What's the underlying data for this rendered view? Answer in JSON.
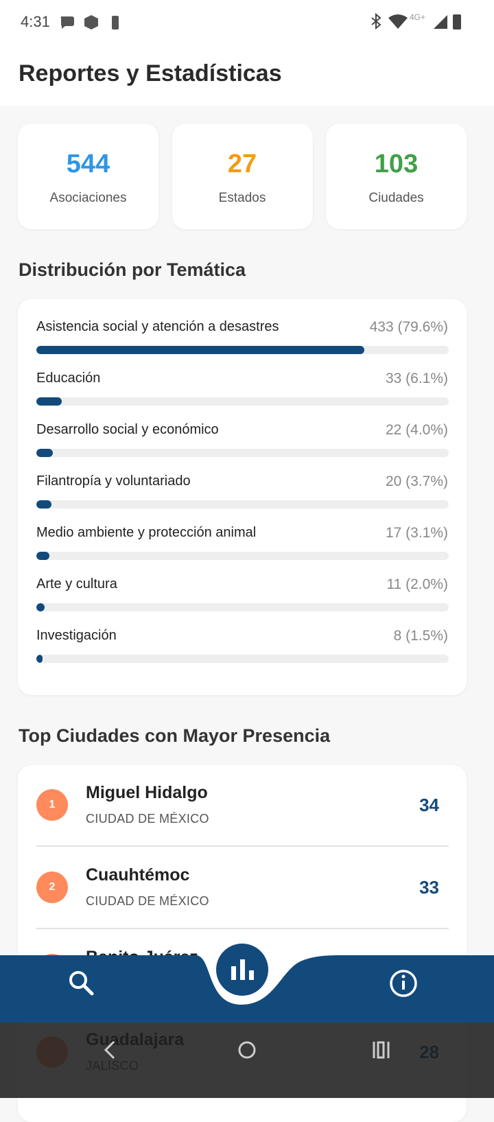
{
  "status_bar": {
    "time": "4:31",
    "network": "4G+"
  },
  "header": {
    "title": "Reportes y Estadísticas"
  },
  "stats": [
    {
      "value": 544,
      "label": "Asociaciones",
      "color": "#2e96e8"
    },
    {
      "value": 27,
      "label": "Estados",
      "color": "#f39c12"
    },
    {
      "value": 103,
      "label": "Ciudades",
      "color": "#43a047"
    }
  ],
  "topics": {
    "title": "Distribución por Temática",
    "items": [
      {
        "name": "Asistencia social y atención a desastres",
        "percent": 79.6,
        "label": "433 (79.6%)"
      },
      {
        "name": "Educación",
        "percent": 6.1,
        "label": "33 (6.1%)"
      },
      {
        "name": "Desarrollo social y económico",
        "percent": 4.0,
        "label": "22 (4.0%)"
      },
      {
        "name": "Filantropía y voluntariado",
        "percent": 3.7,
        "label": "20 (3.7%)"
      },
      {
        "name": "Medio ambiente y protección animal",
        "percent": 3.1,
        "label": "17 (3.1%)"
      },
      {
        "name": "Arte y cultura",
        "percent": 2.0,
        "label": "11 (2.0%)"
      },
      {
        "name": "Investigación",
        "percent": 1.5,
        "label": "8 (1.5%)"
      }
    ]
  },
  "cities": {
    "title": "Top Ciudades con Mayor Presencia",
    "items": [
      {
        "rank": 1,
        "name": "Miguel Hidalgo",
        "state": "CIUDAD DE MÉXICO",
        "count": 34
      },
      {
        "rank": 2,
        "name": "Cuauhtémoc",
        "state": "CIUDAD DE MÉXICO",
        "count": 33
      },
      {
        "name": "Benito Juárez"
      },
      {
        "name": "Guadalajara",
        "state": "JALISCO",
        "count": 28
      }
    ]
  }
}
